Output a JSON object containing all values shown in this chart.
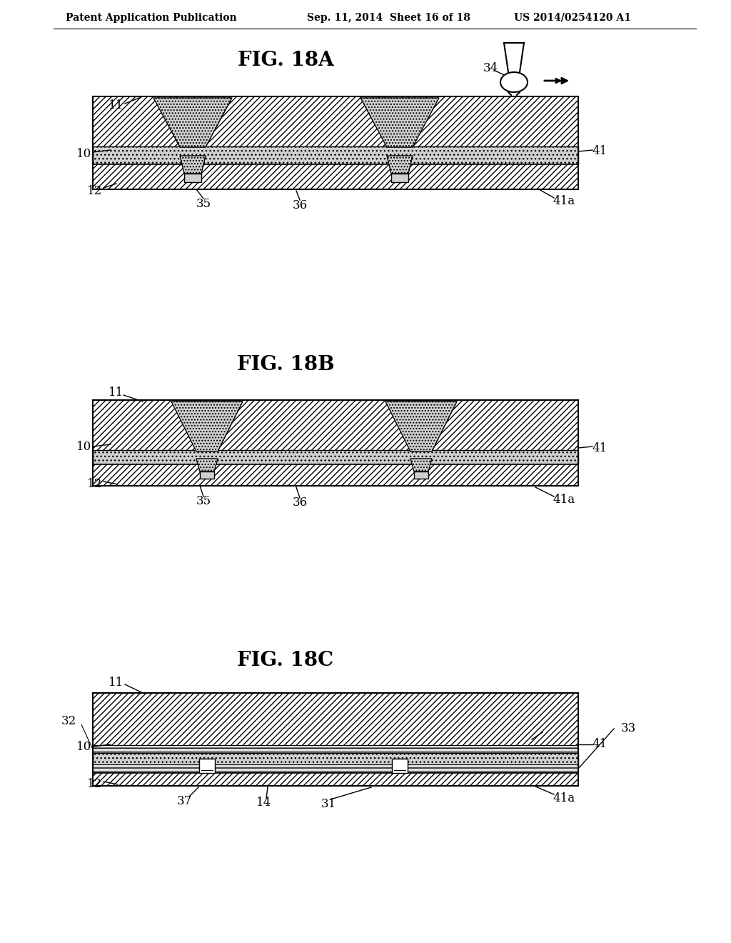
{
  "header_left": "Patent Application Publication",
  "header_mid": "Sep. 11, 2014  Sheet 16 of 18",
  "header_right": "US 2014/0254120 A1",
  "fig_titles": [
    "FIG. 18A",
    "FIG. 18B",
    "FIG. 18C"
  ],
  "background_color": "#ffffff",
  "hatch_color": "#000000",
  "board_color": "#e8e8e8",
  "mid_layer_color": "#c8c8c8",
  "conductor_color": "#b0b0b0"
}
